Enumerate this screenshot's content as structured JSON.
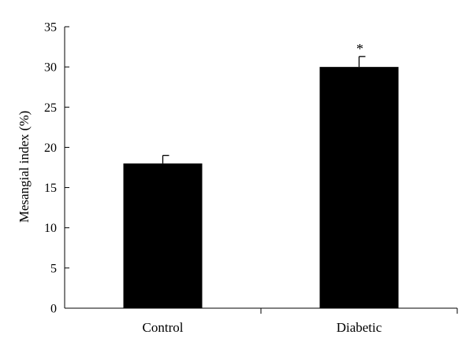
{
  "chart_data": {
    "type": "bar",
    "categories": [
      "Control",
      "Diabetic"
    ],
    "values": [
      18,
      30
    ],
    "error": [
      1,
      1.3
    ],
    "annotations": [
      "",
      "*"
    ],
    "xlabel": "",
    "ylabel": "Mesangial index (%)",
    "ylim": [
      0,
      35
    ],
    "yticks": [
      0,
      5,
      10,
      15,
      20,
      25,
      30,
      35
    ],
    "grid": false,
    "bar_color": "#000000"
  }
}
